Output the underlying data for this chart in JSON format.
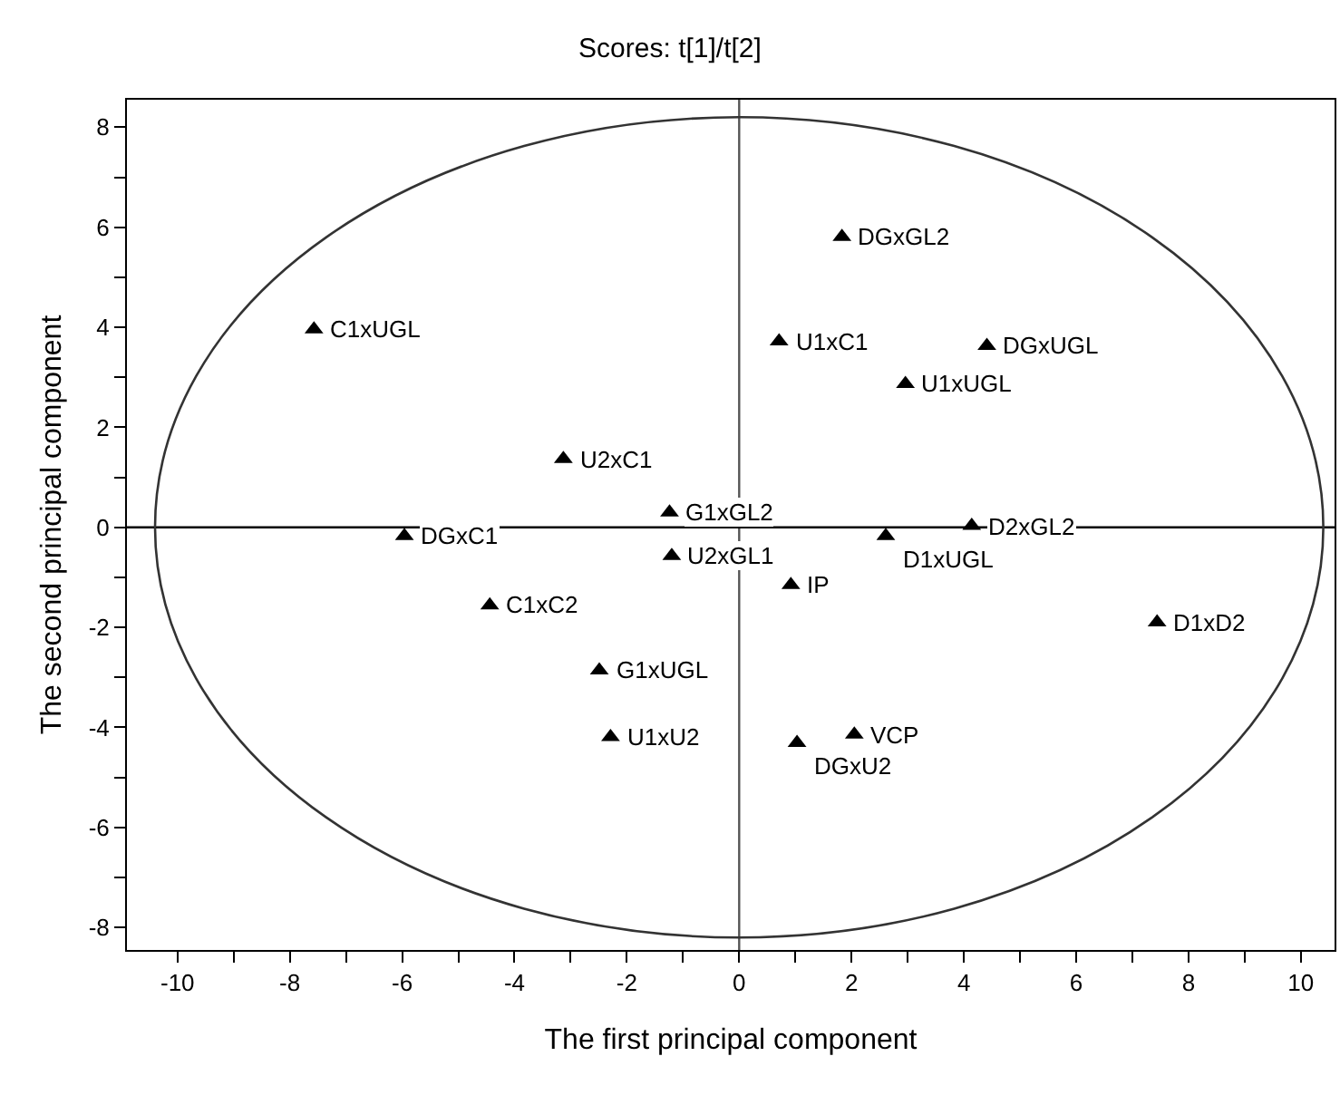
{
  "chart_data": {
    "type": "scatter",
    "title": "Scores: t[1]/t[2]",
    "xlabel": "The first principal component",
    "ylabel": "The second principal component",
    "xlim": [
      -10.9,
      10.6
    ],
    "ylim": [
      -8.45,
      8.55
    ],
    "xticks": [
      -10,
      {
        "value": -9,
        "label": null
      },
      -8,
      {
        "value": -7,
        "label": null
      },
      -6,
      {
        "value": -5,
        "label": null
      },
      -4,
      {
        "value": -3,
        "label": null
      },
      -2,
      {
        "value": -1,
        "label": null
      },
      0,
      {
        "value": 1,
        "label": null
      },
      2,
      {
        "value": 3,
        "label": null
      },
      4,
      {
        "value": 5,
        "label": null
      },
      6,
      {
        "value": 7,
        "label": null
      },
      8,
      {
        "value": 9,
        "label": null
      },
      10
    ],
    "yticks": [
      -8,
      {
        "value": -7,
        "label": null
      },
      -6,
      {
        "value": -5,
        "label": null
      },
      -4,
      {
        "value": -3,
        "label": null
      },
      -2,
      {
        "value": -1,
        "label": null
      },
      0,
      {
        "value": 1,
        "label": null
      },
      2,
      {
        "value": 3,
        "label": null
      },
      4,
      {
        "value": 5,
        "label": null
      },
      6,
      {
        "value": 7,
        "label": null
      },
      8
    ],
    "grid": false,
    "ref_lines": [
      {
        "axis": "x",
        "value": 0,
        "color": "#555555"
      },
      {
        "axis": "y",
        "value": 0,
        "color": "#000000"
      }
    ],
    "series": [
      {
        "marker": "triangle",
        "color": "#000000",
        "x": [
          -7.57,
          -3.13,
          -5.96,
          -1.24,
          -1.2,
          1.83,
          0.71,
          4.41,
          2.96,
          4.14,
          2.61,
          0.92,
          7.44,
          2.05,
          1.03,
          -4.44,
          -2.49,
          -2.29
        ],
        "values": [
          3.96,
          1.37,
          -0.17,
          0.3,
          -0.57,
          5.81,
          3.72,
          3.63,
          2.87,
          0.03,
          -0.17,
          -1.15,
          -1.9,
          -4.14,
          -4.31,
          -1.56,
          -2.86,
          -4.19
        ],
        "value_labels": [
          "C1xUGL",
          "U2xC1",
          "DGxC1",
          "G1xGL2",
          "U2xGL1",
          "DGxGL2",
          "U1xC1",
          "DGxUGL",
          "U1xUGL",
          "D2xGL2",
          "D1xUGL",
          "IP",
          "D1xD2",
          "VCP",
          "DGxU2",
          "C1xC2",
          "G1xUGL",
          "U1xU2"
        ]
      }
    ]
  }
}
